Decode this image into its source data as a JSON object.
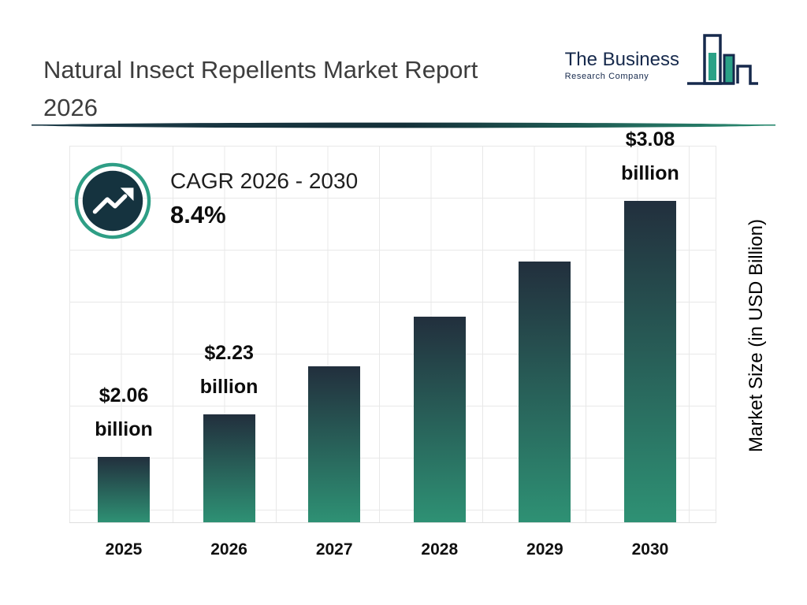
{
  "header": {
    "title": "Natural Insect Repellents Market Report 2026"
  },
  "logo": {
    "line1": "The Business",
    "line2": "Research Company"
  },
  "cagr": {
    "label": "CAGR 2026 - 2030",
    "value": "8.4%"
  },
  "chart_data": {
    "type": "bar",
    "title": "Natural Insect Repellents Market Report 2026",
    "categories": [
      "2025",
      "2026",
      "2027",
      "2028",
      "2029",
      "2030"
    ],
    "values": [
      2.06,
      2.23,
      2.42,
      2.62,
      2.84,
      3.08
    ],
    "bar_labels": [
      "$2.06 billion",
      "$2.23 billion",
      "",
      "",
      "",
      "$3.08 billion"
    ],
    "xlabel": "",
    "ylabel": "Market Size (in USD Billion)",
    "ylim": [
      1.8,
      3.3
    ],
    "grid": true,
    "bar_color_top": "#222f3d",
    "bar_color_bottom": "#2e9174",
    "accent_teal": "#2aa187",
    "navy": "#16294c"
  }
}
